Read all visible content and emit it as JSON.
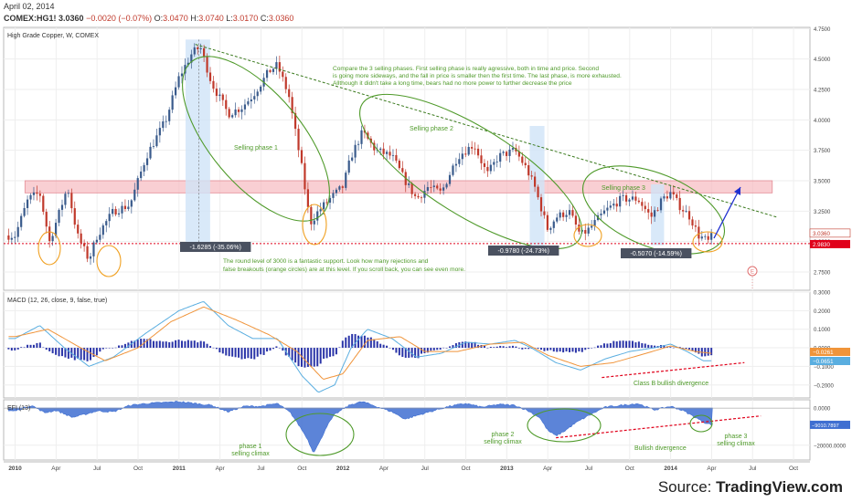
{
  "header": {
    "date": "April 02, 2014",
    "symbol": "COMEX:HG1!",
    "last": "3.0360",
    "change": "−0.0020 (−0.07%)",
    "open_label": "O:",
    "open": "3.0470",
    "high_label": "H:",
    "high": "3.0740",
    "low_label": "L:",
    "low": "3.0170",
    "close_label": "C:",
    "close": "3.0360"
  },
  "source": {
    "prefix": "Source: ",
    "brand": "TradingView.com"
  },
  "colors": {
    "bull": "#3a5b8c",
    "bear": "#c0392b",
    "macd_line": "#5aaee0",
    "signal_line": "#f0943a",
    "hist": "#2b35a8",
    "efi": "#3f6fd1",
    "support": "#e0001a",
    "ellipse": "#4f9a2a",
    "zone": "#f6b6bc",
    "phase_box": "#cfe3f7",
    "divergence": "#e0001a",
    "arrow": "#2030d0",
    "annotation_text": "#4f9a2a"
  },
  "chart_data": [
    {
      "type": "candlestick",
      "title": "High Grade Copper, W, COMEX",
      "x_tick_labels": [
        "2010",
        "Apr",
        "Jul",
        "Oct",
        "2011",
        "Apr",
        "Jul",
        "Oct",
        "2012",
        "Apr",
        "Jul",
        "Oct",
        "2013",
        "Apr",
        "Jul",
        "Oct",
        "2014",
        "Apr",
        "Jul",
        "Oct"
      ],
      "y_tick_labels": [
        "4.7500",
        "4.5000",
        "4.2500",
        "4.0000",
        "3.7500",
        "3.5000",
        "3.2500",
        "3.0000",
        "2.7500"
      ],
      "ylim": [
        2.6,
        4.76
      ],
      "price_badges": [
        "3.0360",
        "2.9830"
      ],
      "support_level": 2.983,
      "resistance_zone": [
        3.4,
        3.5
      ],
      "trendline": {
        "from": [
          2011.1,
          4.62
        ],
        "to": [
          2014.65,
          3.2
        ]
      },
      "anchors": [
        [
          2010.0,
          3.05
        ],
        [
          2010.08,
          3.35
        ],
        [
          2010.15,
          3.4
        ],
        [
          2010.21,
          3.0
        ],
        [
          2010.26,
          3.2
        ],
        [
          2010.32,
          3.45
        ],
        [
          2010.38,
          3.05
        ],
        [
          2010.45,
          2.85
        ],
        [
          2010.5,
          3.05
        ],
        [
          2010.6,
          3.25
        ],
        [
          2010.7,
          3.3
        ],
        [
          2010.8,
          3.7
        ],
        [
          2010.92,
          4.0
        ],
        [
          2011.0,
          4.35
        ],
        [
          2011.08,
          4.55
        ],
        [
          2011.13,
          4.6
        ],
        [
          2011.2,
          4.3
        ],
        [
          2011.3,
          4.05
        ],
        [
          2011.38,
          4.1
        ],
        [
          2011.45,
          4.2
        ],
        [
          2011.55,
          4.4
        ],
        [
          2011.6,
          4.45
        ],
        [
          2011.67,
          4.2
        ],
        [
          2011.75,
          3.6
        ],
        [
          2011.8,
          3.15
        ],
        [
          2011.85,
          3.25
        ],
        [
          2011.92,
          3.35
        ],
        [
          2012.0,
          3.45
        ],
        [
          2012.05,
          3.7
        ],
        [
          2012.12,
          3.9
        ],
        [
          2012.2,
          3.75
        ],
        [
          2012.3,
          3.7
        ],
        [
          2012.38,
          3.5
        ],
        [
          2012.45,
          3.35
        ],
        [
          2012.52,
          3.45
        ],
        [
          2012.6,
          3.4
        ],
        [
          2012.7,
          3.7
        ],
        [
          2012.8,
          3.8
        ],
        [
          2012.88,
          3.55
        ],
        [
          2012.95,
          3.7
        ],
        [
          2013.05,
          3.75
        ],
        [
          2013.12,
          3.6
        ],
        [
          2013.17,
          3.45
        ],
        [
          2013.25,
          3.1
        ],
        [
          2013.3,
          3.2
        ],
        [
          2013.38,
          3.25
        ],
        [
          2013.45,
          3.05
        ],
        [
          2013.5,
          3.1
        ],
        [
          2013.6,
          3.25
        ],
        [
          2013.7,
          3.35
        ],
        [
          2013.8,
          3.35
        ],
        [
          2013.88,
          3.2
        ],
        [
          2013.95,
          3.35
        ],
        [
          2014.0,
          3.4
        ],
        [
          2014.05,
          3.3
        ],
        [
          2014.12,
          3.2
        ],
        [
          2014.17,
          3.05
        ],
        [
          2014.23,
          3.0
        ],
        [
          2014.25,
          3.04
        ]
      ]
    },
    {
      "type": "line",
      "title": "MACD (12, 26, close, 9, false, true)",
      "y_tick_labels": [
        "0.3000",
        "0.2000",
        "0.1000",
        "0.0000",
        "−0.1000",
        "−0.2000"
      ],
      "ylim": [
        -0.27,
        0.3
      ],
      "value_badges": [
        "−0.0261",
        "−0.0651"
      ],
      "macd_anchors": [
        [
          2010.0,
          0.05
        ],
        [
          2010.15,
          0.12
        ],
        [
          2010.3,
          0.0
        ],
        [
          2010.45,
          -0.1
        ],
        [
          2010.6,
          -0.05
        ],
        [
          2010.8,
          0.08
        ],
        [
          2011.0,
          0.2
        ],
        [
          2011.15,
          0.25
        ],
        [
          2011.3,
          0.12
        ],
        [
          2011.45,
          0.05
        ],
        [
          2011.6,
          0.05
        ],
        [
          2011.75,
          -0.15
        ],
        [
          2011.85,
          -0.24
        ],
        [
          2011.95,
          -0.2
        ],
        [
          2012.05,
          0.0
        ],
        [
          2012.15,
          0.1
        ],
        [
          2012.3,
          0.05
        ],
        [
          2012.45,
          -0.05
        ],
        [
          2012.6,
          -0.03
        ],
        [
          2012.75,
          0.03
        ],
        [
          2012.9,
          0.02
        ],
        [
          2013.05,
          0.04
        ],
        [
          2013.15,
          0.0
        ],
        [
          2013.3,
          -0.08
        ],
        [
          2013.45,
          -0.12
        ],
        [
          2013.6,
          -0.06
        ],
        [
          2013.75,
          -0.02
        ],
        [
          2013.9,
          0.0
        ],
        [
          2014.0,
          0.02
        ],
        [
          2014.1,
          -0.02
        ],
        [
          2014.2,
          -0.07
        ],
        [
          2014.25,
          -0.07
        ]
      ],
      "signal_anchors": [
        [
          2010.0,
          0.06
        ],
        [
          2010.2,
          0.1
        ],
        [
          2010.4,
          0.0
        ],
        [
          2010.55,
          -0.07
        ],
        [
          2010.75,
          0.0
        ],
        [
          2010.95,
          0.14
        ],
        [
          2011.15,
          0.22
        ],
        [
          2011.35,
          0.15
        ],
        [
          2011.55,
          0.07
        ],
        [
          2011.72,
          -0.02
        ],
        [
          2011.88,
          -0.17
        ],
        [
          2012.0,
          -0.14
        ],
        [
          2012.15,
          0.04
        ],
        [
          2012.35,
          0.06
        ],
        [
          2012.5,
          -0.02
        ],
        [
          2012.7,
          -0.02
        ],
        [
          2012.9,
          0.02
        ],
        [
          2013.1,
          0.03
        ],
        [
          2013.25,
          -0.04
        ],
        [
          2013.45,
          -0.1
        ],
        [
          2013.65,
          -0.08
        ],
        [
          2013.85,
          -0.03
        ],
        [
          2014.0,
          0.01
        ],
        [
          2014.15,
          -0.02
        ],
        [
          2014.25,
          -0.03
        ]
      ],
      "divergence": {
        "from": [
          2013.58,
          -0.16
        ],
        "to": [
          2014.45,
          -0.08
        ]
      }
    },
    {
      "type": "area",
      "title": "EFI (13)",
      "y_tick_labels": [
        "0.0000",
        "−20000.0000"
      ],
      "ylim": [
        -28000,
        4500
      ],
      "value_badges": [
        "−9010.7897"
      ],
      "anchors": [
        [
          2010.0,
          -1500
        ],
        [
          2010.1,
          1500
        ],
        [
          2010.18,
          -2500
        ],
        [
          2010.25,
          -1200
        ],
        [
          2010.35,
          -5000
        ],
        [
          2010.42,
          -3500
        ],
        [
          2010.5,
          -1500
        ],
        [
          2010.6,
          -2000
        ],
        [
          2010.7,
          1500
        ],
        [
          2010.8,
          2500
        ],
        [
          2010.9,
          3000
        ],
        [
          2011.0,
          3500
        ],
        [
          2011.1,
          2500
        ],
        [
          2011.2,
          1500
        ],
        [
          2011.3,
          -2000
        ],
        [
          2011.4,
          1000
        ],
        [
          2011.5,
          1000
        ],
        [
          2011.6,
          2500
        ],
        [
          2011.68,
          -2500
        ],
        [
          2011.73,
          -9000
        ],
        [
          2011.78,
          -16000
        ],
        [
          2011.82,
          -24000
        ],
        [
          2011.86,
          -18000
        ],
        [
          2011.9,
          -10000
        ],
        [
          2011.95,
          -3500
        ],
        [
          2012.0,
          -500
        ],
        [
          2012.05,
          2000
        ],
        [
          2012.12,
          3500
        ],
        [
          2012.2,
          1000
        ],
        [
          2012.3,
          -2000
        ],
        [
          2012.38,
          -6000
        ],
        [
          2012.45,
          -4000
        ],
        [
          2012.55,
          -1500
        ],
        [
          2012.65,
          1000
        ],
        [
          2012.75,
          2500
        ],
        [
          2012.85,
          500
        ],
        [
          2012.95,
          2000
        ],
        [
          2013.05,
          1500
        ],
        [
          2013.12,
          -1000
        ],
        [
          2013.2,
          -5000
        ],
        [
          2013.25,
          -12000
        ],
        [
          2013.3,
          -15000
        ],
        [
          2013.35,
          -12500
        ],
        [
          2013.42,
          -8000
        ],
        [
          2013.5,
          -4000
        ],
        [
          2013.6,
          500
        ],
        [
          2013.7,
          1500
        ],
        [
          2013.8,
          2500
        ],
        [
          2013.9,
          -1000
        ],
        [
          2014.0,
          1000
        ],
        [
          2014.08,
          -1500
        ],
        [
          2014.15,
          -5000
        ],
        [
          2014.2,
          -7500
        ],
        [
          2014.25,
          -9000
        ]
      ],
      "divergence": {
        "from": [
          2013.3,
          -16000
        ],
        "to": [
          2014.55,
          -4200
        ]
      }
    }
  ],
  "annotations": {
    "compare": [
      "Compare the 3 selling phases. First selling phase is really agressive, both in time and price. Second",
      "is going more sideways, and the fall in price is smaller then the first time. The last phase, is more exhausted.",
      "Allthough it didn't take a long time, bears had no more power to further decrease the price"
    ],
    "phase1": "Selling phase 1",
    "phase2": "Selling phase 2",
    "phase3": "Selling phase 3",
    "support_note": [
      "The round level of 3000 is a fantastic support. Look how many rejections and",
      "false breakouts (orange circles) are at this level. If you scroll back, you can see even more."
    ],
    "measure1": "-1.6285 (-35.06%)",
    "measure2": "-0.9780 (-24.73%)",
    "measure3": "-0.5070 (-14.59%)",
    "class_b": "Class B bullish divergence",
    "efi_phase1": [
      "phase 1",
      "selling climax"
    ],
    "efi_phase2": [
      "phase 2",
      "selling climax"
    ],
    "efi_phase3": [
      "phase 3",
      "selling climax"
    ],
    "bullish_div": "Bullish divergence",
    "earnings_marker": "E"
  }
}
